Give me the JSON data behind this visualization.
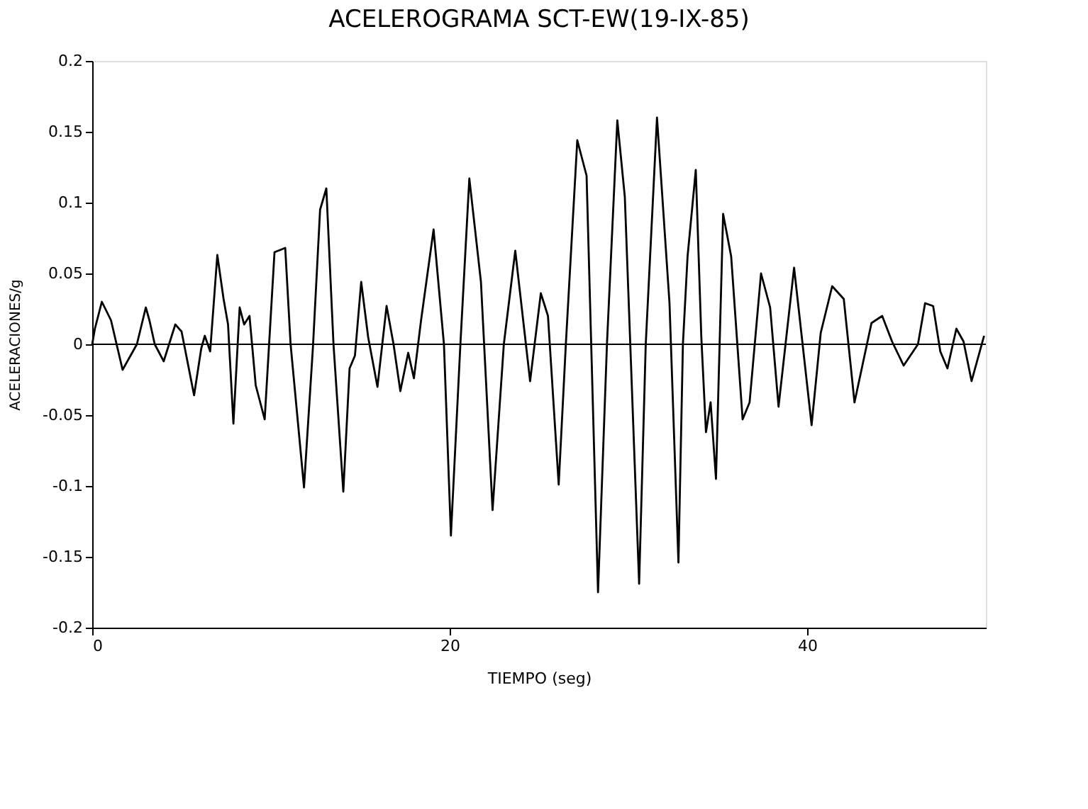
{
  "chart_data": {
    "type": "line",
    "title": "ACELEROGRAMA SCT-EW(19-IX-85)",
    "xlabel": "TIEMPO (seg)",
    "ylabel": "ACELERACIONES/g",
    "xlim": [
      0,
      50
    ],
    "xticks": [
      0,
      20,
      40
    ],
    "ylim": [
      -0.2,
      0.2
    ],
    "yticks": [
      -0.2,
      -0.15,
      -0.1,
      -0.05,
      0,
      0.05,
      0.1,
      0.15,
      0.2
    ],
    "grid": false,
    "line_style": "solid",
    "marker": "none",
    "ref_lines": [
      {
        "axis": "y",
        "value": 0,
        "color": "#000000"
      }
    ],
    "series": [
      {
        "color": "#000000",
        "x": [
          0,
          0.15,
          0.54,
          1.05,
          1.7,
          2.1,
          2.5,
          3.0,
          3.2,
          3.5,
          4.0,
          4.65,
          5.0,
          5.7,
          6.1,
          6.3,
          6.6,
          7.0,
          7.35,
          7.6,
          7.9,
          8.25,
          8.5,
          8.8,
          9.15,
          9.65,
          10.2,
          10.8,
          11.1,
          11.85,
          12.35,
          12.75,
          13.1,
          13.5,
          14.05,
          14.4,
          14.7,
          15.05,
          15.44,
          15.96,
          16.47,
          16.86,
          17.24,
          17.68,
          18.0,
          18.4,
          19.1,
          19.68,
          20.07,
          20.6,
          21.1,
          21.75,
          22.4,
          23.03,
          23.67,
          24.5,
          25.1,
          25.5,
          26.1,
          26.5,
          27.14,
          27.66,
          28.3,
          28.8,
          29.38,
          29.8,
          30.6,
          30.97,
          31.6,
          32.3,
          32.8,
          33.05,
          33.31,
          33.77,
          34.08,
          34.34,
          34.6,
          34.9,
          35.3,
          35.75,
          36.39,
          36.78,
          37.42,
          37.93,
          38.4,
          39.27,
          40.25,
          40.76,
          41.4,
          42.05,
          42.65,
          43.6,
          44.2,
          44.75,
          45.4,
          46.2,
          46.6,
          47.05,
          47.45,
          47.85,
          48.35,
          48.75,
          49.2,
          49.9
        ],
        "values": [
          0,
          0.011,
          0.03,
          0.017,
          -0.018,
          -0.009,
          0,
          0.026,
          0.017,
          0,
          -0.012,
          0.014,
          0.009,
          -0.036,
          -0.003,
          0.006,
          -0.005,
          0.063,
          0.032,
          0.014,
          -0.056,
          0.026,
          0.014,
          0.02,
          -0.029,
          -0.053,
          0.065,
          0.068,
          0,
          -0.101,
          -0.002,
          0.095,
          0.11,
          0,
          -0.104,
          -0.017,
          -0.008,
          0.044,
          0.005,
          -0.03,
          0.027,
          0,
          -0.033,
          -0.006,
          -0.024,
          0.017,
          0.081,
          0,
          -0.135,
          0,
          0.117,
          0.044,
          -0.117,
          0,
          0.066,
          -0.026,
          0.036,
          0.02,
          -0.099,
          0,
          0.144,
          0.119,
          -0.175,
          0,
          0.158,
          0.104,
          -0.169,
          0,
          0.16,
          0.029,
          -0.154,
          0,
          0.062,
          0.123,
          0.005,
          -0.062,
          -0.041,
          -0.095,
          0.092,
          0.062,
          -0.053,
          -0.041,
          0.05,
          0.026,
          -0.044,
          0.054,
          -0.057,
          0.008,
          0.041,
          0.032,
          -0.041,
          0.015,
          0.02,
          0.002,
          -0.015,
          0,
          0.029,
          0.027,
          -0.005,
          -0.017,
          0.011,
          0.002,
          -0.026,
          0.006
        ]
      }
    ]
  }
}
